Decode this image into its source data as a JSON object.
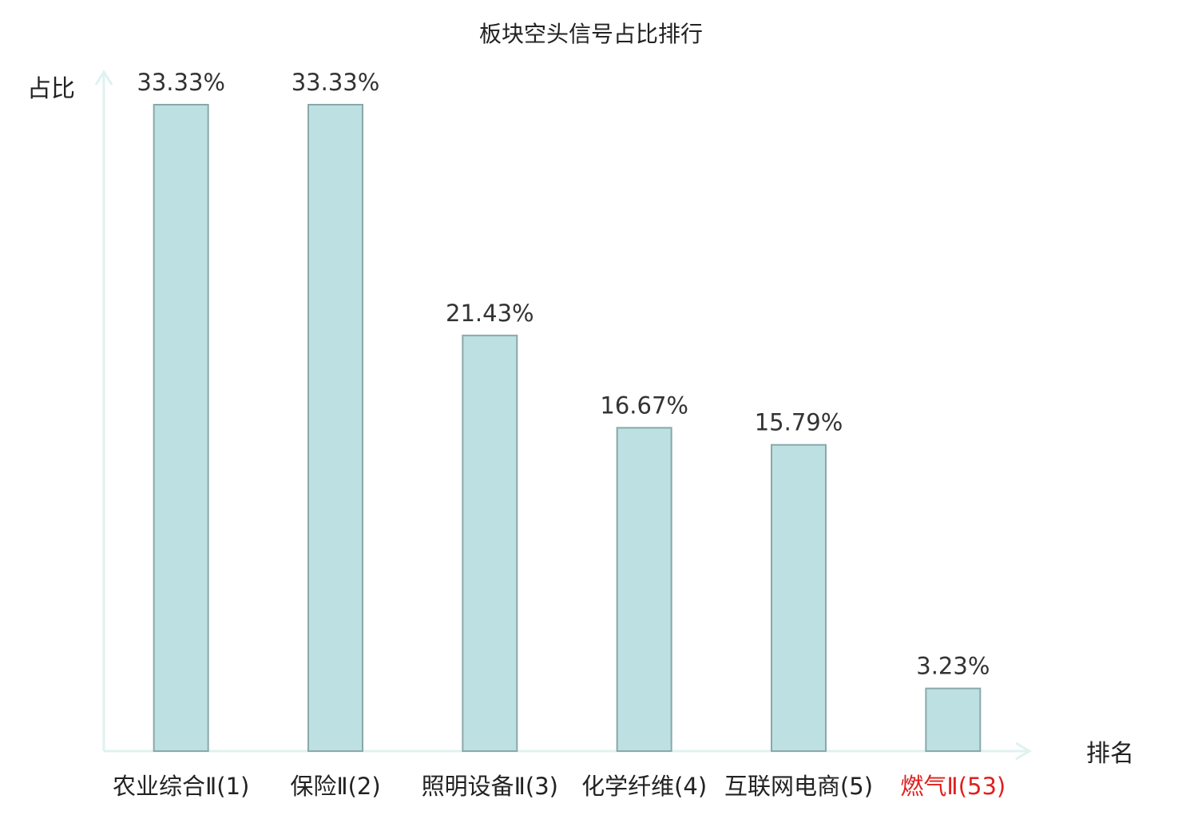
{
  "chart_data": {
    "type": "bar",
    "title": "板块空头信号占比排行",
    "ylabel": "占比",
    "xlabel": "排名",
    "categories": [
      {
        "name": "农业综合",
        "suffix": "Ⅱ",
        "rank": "(1)"
      },
      {
        "name": "保险",
        "suffix": "Ⅱ",
        "rank": "(2)"
      },
      {
        "name": "照明设备",
        "suffix": "Ⅱ",
        "rank": "(3)"
      },
      {
        "name": "化学纤维",
        "suffix": "",
        "rank": "(4)"
      },
      {
        "name": "互联网电商",
        "suffix": "",
        "rank": "(5)"
      },
      {
        "name": "燃气",
        "suffix": "Ⅱ",
        "rank": "(53)"
      }
    ],
    "values": [
      33.33,
      33.33,
      21.43,
      16.67,
      15.79,
      3.23
    ],
    "value_labels": [
      "33.33%",
      "33.33%",
      "21.43%",
      "16.67%",
      "15.79%",
      "3.23%"
    ],
    "highlight_index": 5,
    "ylim": [
      0,
      33.33
    ],
    "grid": false,
    "colors": {
      "bar_fill": "#bde0e2",
      "bar_stroke": "#8aa8aa",
      "axis": "#dff2ef",
      "highlight_label": "#e02020",
      "text": "#222222"
    }
  }
}
